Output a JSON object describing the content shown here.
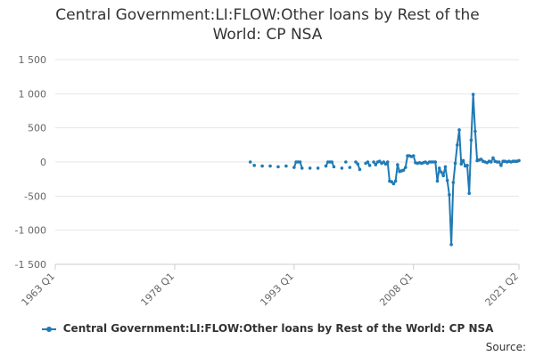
{
  "chart_data": {
    "type": "line",
    "title": "Central Government:LI:FLOW:Other loans by Rest of the World: CP NSA",
    "xlabel": "",
    "ylabel": "",
    "ylim": [
      -1500,
      1500
    ],
    "yticks": [
      -1500,
      -1000,
      -500,
      0,
      500,
      1000,
      1500
    ],
    "ytick_labels": [
      "-1 500",
      "-1 000",
      "-500",
      "0",
      "500",
      "1 000",
      "1 500"
    ],
    "xlim": [
      1963,
      2021.25
    ],
    "xticks": [
      1963,
      1978,
      1993,
      2008,
      2021.25
    ],
    "xtick_labels": [
      "1963 Q1",
      "1978 Q1",
      "1993 Q1",
      "2008 Q1",
      "2021 Q2"
    ],
    "grid": true,
    "legend_position": "bottom",
    "series": [
      {
        "name": "Central Government:LI:FLOW:Other loans by Rest of the World: CP NSA",
        "color": "#1f7ab5",
        "x": [
          1987.5,
          1988.0,
          1989.0,
          1990.0,
          1991.0,
          1992.0,
          1993.0,
          1993.25,
          1993.5,
          1993.75,
          1994.0,
          1995.0,
          1996.0,
          1997.0,
          1997.25,
          1997.5,
          1997.75,
          1998.0,
          1999.0,
          1999.5,
          2000.0,
          2000.75,
          2001.0,
          2001.25,
          2002.0,
          2002.25,
          2002.5,
          2003.0,
          2003.25,
          2003.5,
          2003.75,
          2004.0,
          2004.25,
          2004.5,
          2004.75,
          2005.0,
          2005.25,
          2005.5,
          2005.75,
          2006.0,
          2006.25,
          2006.5,
          2006.75,
          2007.0,
          2007.25,
          2007.5,
          2007.75,
          2008.0,
          2008.25,
          2008.5,
          2008.75,
          2009.0,
          2009.25,
          2009.5,
          2009.75,
          2010.0,
          2010.25,
          2010.5,
          2010.75,
          2011.0,
          2011.25,
          2011.5,
          2011.75,
          2012.0,
          2012.25,
          2012.5,
          2012.75,
          2013.0,
          2013.25,
          2013.5,
          2013.75,
          2014.0,
          2014.25,
          2014.5,
          2014.75,
          2015.0,
          2015.25,
          2015.5,
          2015.75,
          2016.0,
          2016.25,
          2016.5,
          2016.75,
          2017.0,
          2017.25,
          2017.5,
          2017.75,
          2018.0,
          2018.25,
          2018.5,
          2018.75,
          2019.0,
          2019.25,
          2019.5,
          2019.75,
          2020.0,
          2020.25,
          2020.5,
          2020.75,
          2021.0,
          2021.25
        ],
        "y": [
          0,
          -50,
          -60,
          -60,
          -70,
          -60,
          -80,
          0,
          0,
          0,
          -90,
          -90,
          -90,
          -60,
          0,
          0,
          0,
          -70,
          -90,
          0,
          -80,
          0,
          -30,
          -110,
          -20,
          0,
          -50,
          0,
          -40,
          0,
          10,
          -20,
          0,
          -30,
          0,
          -280,
          -290,
          -320,
          -280,
          -40,
          -140,
          -130,
          -120,
          -80,
          90,
          90,
          80,
          90,
          -10,
          -20,
          -10,
          -20,
          -10,
          0,
          -20,
          0,
          0,
          0,
          0,
          -280,
          -90,
          -150,
          -200,
          -70,
          -270,
          -480,
          -1210,
          -300,
          -20,
          250,
          470,
          -30,
          20,
          -60,
          -50,
          -460,
          320,
          990,
          450,
          20,
          30,
          40,
          10,
          0,
          -10,
          10,
          0,
          60,
          10,
          0,
          0,
          -50,
          10,
          10,
          0,
          10,
          0,
          10,
          10,
          10,
          20
        ],
        "isolated_points": [
          [
            1987.5,
            0
          ],
          [
            1988.0,
            -50
          ],
          [
            1989.0,
            -60
          ],
          [
            1990.0,
            -60
          ],
          [
            1991.0,
            -70
          ],
          [
            1992.0,
            -60
          ],
          [
            1994.0,
            -90
          ],
          [
            1995.0,
            -90
          ],
          [
            1996.0,
            -90
          ],
          [
            1998.0,
            -70
          ],
          [
            1999.0,
            -90
          ],
          [
            2000.0,
            -80
          ]
        ]
      }
    ]
  },
  "legend": {
    "label": "Central Government:LI:FLOW:Other loans by Rest of the World: CP NSA"
  },
  "source": {
    "label": "Source:"
  }
}
